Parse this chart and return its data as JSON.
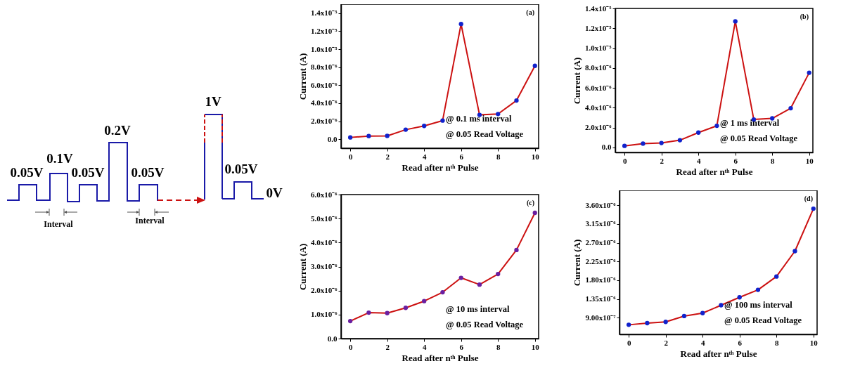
{
  "chart_data": [
    {
      "type": "other",
      "annotations": [
        "0.05V",
        "0.1V",
        "0.05V",
        "0.2V",
        "0.05V",
        "Interval",
        "Interval",
        "1V",
        "0.05V",
        "0V"
      ]
    },
    {
      "type": "line",
      "xlabel": "Read after nᵗʰ Pulse",
      "ylabel": "Current (A)",
      "x": [
        0,
        1,
        2,
        3,
        4,
        5,
        6,
        7,
        8,
        9,
        10
      ],
      "xlim": [
        -0.5,
        10.2
      ],
      "xticks": [
        0,
        2,
        4,
        6,
        8,
        10
      ],
      "ylim": [
        -1e-06,
        1.5e-05
      ],
      "yticks": [
        {
          "value": 0,
          "label": "0.0"
        },
        {
          "value": 2e-06,
          "label": "2.0x10⁻⁶"
        },
        {
          "value": 4e-06,
          "label": "4.0x10⁻⁶"
        },
        {
          "value": 6e-06,
          "label": "6.0x10⁻⁶"
        },
        {
          "value": 8e-06,
          "label": "8.0x10⁻⁶"
        },
        {
          "value": 1e-05,
          "label": "1.0x10⁻⁵"
        },
        {
          "value": 1.2e-05,
          "label": "1.2x10⁻⁵"
        },
        {
          "value": 1.4e-05,
          "label": "1.4x10⁻⁵"
        }
      ],
      "grid": false,
      "marker": "circle",
      "line_style": "solid",
      "annotations": [
        "(a)",
        "@ 0.1 ms interval",
        "@ 0.05 Read Voltage"
      ],
      "series": [
        {
          "color": "#cc1111",
          "colors": [
            "#1122cc",
            "#1122cc",
            "#1122cc",
            "#1122cc",
            "#1122cc",
            "#1122cc",
            "#1122cc",
            "#1122cc",
            "#1122cc",
            "#1122cc",
            "#1122cc"
          ],
          "values": [
            2e-07,
            3.5e-07,
            3.7e-07,
            1.06e-06,
            1.48e-06,
            2.07e-06,
            1.28e-05,
            2.7e-06,
            2.8e-06,
            4.3e-06,
            8.15e-06
          ]
        }
      ]
    },
    {
      "type": "line",
      "xlabel": "Read after nᵗʰ Pulse",
      "ylabel": "Current (A)",
      "x": [
        0,
        1,
        2,
        3,
        4,
        5,
        6,
        7,
        8,
        9,
        10
      ],
      "xlim": [
        -0.5,
        10.2
      ],
      "xticks": [
        0,
        2,
        4,
        6,
        8,
        10
      ],
      "ylim": [
        -5e-07,
        1.4e-05
      ],
      "yticks": [
        {
          "value": 0,
          "label": "0.0"
        },
        {
          "value": 2e-06,
          "label": "2.0x10⁻⁶"
        },
        {
          "value": 4e-06,
          "label": "4.0x10⁻⁶"
        },
        {
          "value": 6e-06,
          "label": "6.0x10⁻⁶"
        },
        {
          "value": 8e-06,
          "label": "8.0x10⁻⁶"
        },
        {
          "value": 1e-05,
          "label": "1.0x10⁻⁵"
        },
        {
          "value": 1.2e-05,
          "label": "1.2x10⁻⁵"
        },
        {
          "value": 1.4e-05,
          "label": "1.4x10⁻⁵"
        }
      ],
      "grid": false,
      "marker": "circle",
      "line_style": "solid",
      "annotations": [
        "(b)",
        "@ 1 ms interval",
        "@ 0.05 Read Voltage"
      ],
      "series": [
        {
          "color": "#cc1111",
          "colors": [
            "#1122cc",
            "#1122cc",
            "#1122cc",
            "#1122cc",
            "#1122cc",
            "#1122cc",
            "#1122cc",
            "#1122cc",
            "#1122cc",
            "#1122cc",
            "#1122cc"
          ],
          "values": [
            1.6e-07,
            3.9e-07,
            4.5e-07,
            7.3e-07,
            1.5e-06,
            2.18e-06,
            1.27e-05,
            2.82e-06,
            2.93e-06,
            3.95e-06,
            7.52e-06
          ]
        }
      ]
    },
    {
      "type": "line",
      "xlabel": "Read after nᵗʰ Pulse",
      "ylabel": "Current (A)",
      "x": [
        0,
        1,
        2,
        3,
        4,
        5,
        6,
        7,
        8,
        9,
        10
      ],
      "xlim": [
        -0.5,
        10.2
      ],
      "xticks": [
        0,
        2,
        4,
        6,
        8,
        10
      ],
      "ylim": [
        0,
        6e-06
      ],
      "yticks": [
        {
          "value": 0,
          "label": "0.0"
        },
        {
          "value": 1e-06,
          "label": "1.0x10⁻⁶"
        },
        {
          "value": 2e-06,
          "label": "2.0x10⁻⁶"
        },
        {
          "value": 3e-06,
          "label": "3.0x10⁻⁶"
        },
        {
          "value": 4e-06,
          "label": "4.0x10⁻⁶"
        },
        {
          "value": 5e-06,
          "label": "5.0x10⁻⁶"
        },
        {
          "value": 6e-06,
          "label": "6.0x10⁻⁶"
        }
      ],
      "grid": false,
      "marker": "circle",
      "line_style": "solid",
      "annotations": [
        "(c)",
        "@ 10 ms interval",
        "@ 0.05 Read Voltage"
      ],
      "series": [
        {
          "color": "#cc1111",
          "colors": [
            "#6a1fa0",
            "#6a1fa0",
            "#6a1fa0",
            "#6a1fa0",
            "#6a1fa0",
            "#6a1fa0",
            "#6a1fa0",
            "#6a1fa0",
            "#6a1fa0",
            "#6a1fa0",
            "#6a1fa0"
          ],
          "values": [
            7.3e-07,
            1.08e-06,
            1.06e-06,
            1.28e-06,
            1.56e-06,
            1.93e-06,
            2.53e-06,
            2.25e-06,
            2.69e-06,
            3.69e-06,
            5.24e-06
          ]
        }
      ]
    },
    {
      "type": "line",
      "xlabel": "Read after nᵗʰ Pulse",
      "ylabel": "Current (A)",
      "x": [
        0,
        1,
        2,
        3,
        4,
        5,
        6,
        7,
        8,
        9,
        10
      ],
      "xlim": [
        -0.5,
        10.2
      ],
      "xticks": [
        0,
        2,
        4,
        6,
        8,
        10
      ],
      "ylim": [
        5e-07,
        3.96e-06
      ],
      "yticks": [
        {
          "value": 9e-07,
          "label": "9.00x10⁻⁷"
        },
        {
          "value": 1.35e-06,
          "label": "1.35x10⁻⁶"
        },
        {
          "value": 1.8e-06,
          "label": "1.80x10⁻⁶"
        },
        {
          "value": 2.25e-06,
          "label": "2.25x10⁻⁶"
        },
        {
          "value": 2.7e-06,
          "label": "2.70x10⁻⁶"
        },
        {
          "value": 3.15e-06,
          "label": "3.15x10⁻⁶"
        },
        {
          "value": 3.6e-06,
          "label": "3.60x10⁻⁶"
        }
      ],
      "grid": false,
      "marker": "circle",
      "line_style": "solid",
      "annotations": [
        "(d)",
        "@ 100 ms interval",
        "@ 0.05 Read Voltage"
      ],
      "series": [
        {
          "color": "#cc1111",
          "colors": [
            "#1122cc",
            "#1122cc",
            "#1122cc",
            "#1122cc",
            "#1122cc",
            "#1122cc",
            "#1122cc",
            "#1122cc",
            "#1122cc",
            "#1122cc",
            "#1122cc"
          ],
          "values": [
            7.3e-07,
            7.7e-07,
            8e-07,
            9.4e-07,
            1.01e-06,
            1.2e-06,
            1.39e-06,
            1.57e-06,
            1.89e-06,
            2.5e-06,
            3.52e-06
          ]
        }
      ]
    }
  ]
}
